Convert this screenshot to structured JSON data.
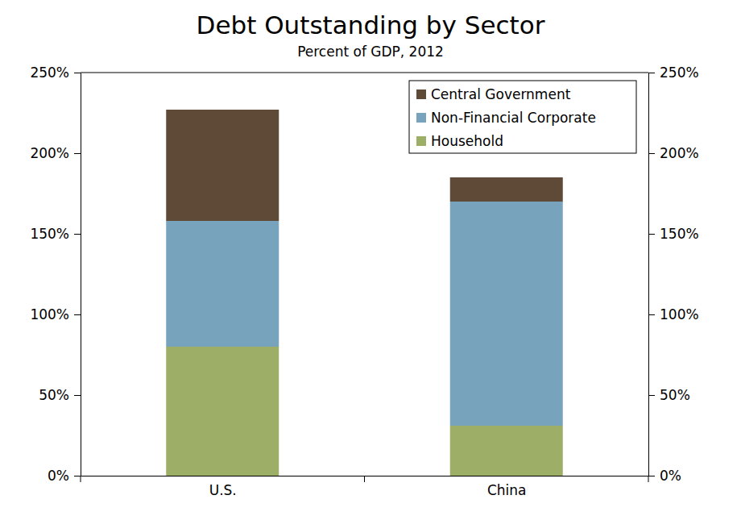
{
  "chart_data": {
    "type": "bar",
    "title": "Debt Outstanding by Sector",
    "subtitle": "Percent of GDP, 2012",
    "categories": [
      "U.S.",
      "China"
    ],
    "series": [
      {
        "name": "Household",
        "color": "#9dae66",
        "values": [
          80,
          31
        ]
      },
      {
        "name": "Non-Financial Corporate",
        "color": "#78a3bd",
        "values": [
          78,
          139
        ]
      },
      {
        "name": "Central Government",
        "color": "#5e4a36",
        "values": [
          69,
          15
        ]
      }
    ],
    "ylim": [
      0,
      250
    ],
    "yticks": [
      {
        "value": 0,
        "label": "0%"
      },
      {
        "value": 50,
        "label": "50%"
      },
      {
        "value": 100,
        "label": "100%"
      },
      {
        "value": 150,
        "label": "150%"
      },
      {
        "value": 200,
        "label": "200%"
      },
      {
        "value": 250,
        "label": "250%"
      }
    ],
    "stacked": true,
    "grid": false,
    "legend": "upper right"
  }
}
